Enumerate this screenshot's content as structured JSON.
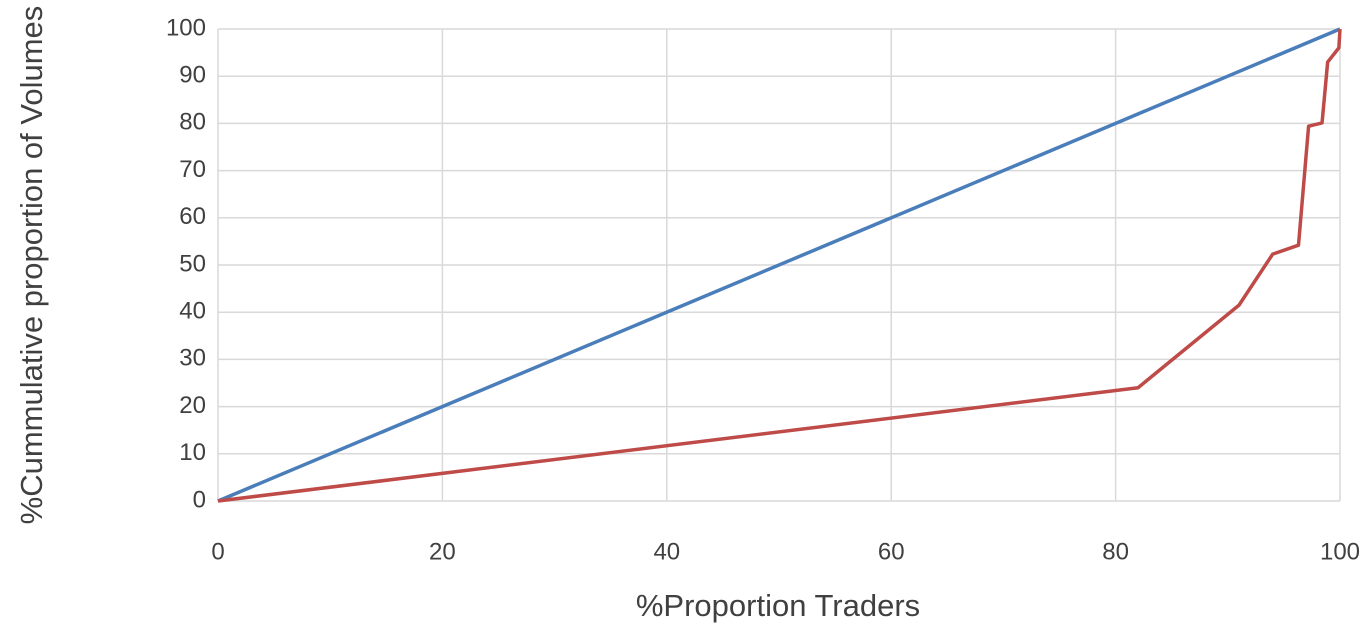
{
  "chart_data": {
    "type": "line",
    "x_label": "%Proportion Traders",
    "y_label": "%Cummulative proportion of Volumes",
    "series": [
      {
        "color": "#4a7ebb",
        "x": [
          0,
          100
        ],
        "values": [
          0,
          100
        ]
      },
      {
        "color": "#be4b48",
        "x": [
          0,
          82,
          91,
          94,
          96.3,
          97.2,
          98.4,
          98.9,
          99.9,
          100
        ],
        "values": [
          0,
          24,
          41.5,
          52.3,
          54.2,
          79.4,
          80.1,
          93,
          96,
          100
        ]
      }
    ],
    "xlim": [
      0,
      100
    ],
    "xticks": [
      0,
      20,
      40,
      60,
      80,
      100
    ],
    "ylim": [
      0,
      100
    ],
    "yticks": [
      0,
      10,
      20,
      30,
      40,
      50,
      60,
      70,
      80,
      90,
      100
    ],
    "grid": true
  }
}
